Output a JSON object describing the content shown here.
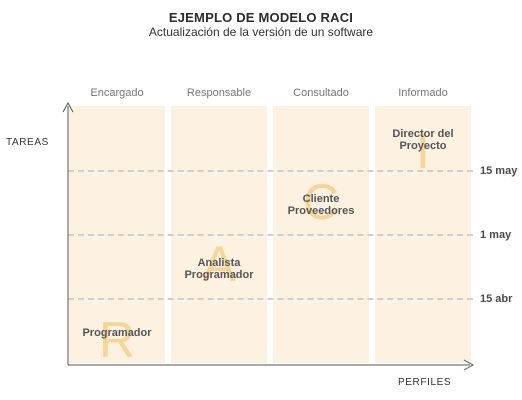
{
  "title": "EJEMPLO DE MODELO RACI",
  "subtitle": "Actualización de la versión de un software",
  "axes": {
    "y_label": "TAREAS",
    "x_label": "PERFILES"
  },
  "columns": [
    {
      "header": "Encargado",
      "letter": "R",
      "label_lines": [
        "Programador"
      ]
    },
    {
      "header": "Responsable",
      "letter": "A",
      "label_lines": [
        "Analista",
        "Programador"
      ]
    },
    {
      "header": "Consultado",
      "letter": "C",
      "label_lines": [
        "Cliente",
        "Proveedores"
      ]
    },
    {
      "header": "Informado",
      "letter": "I",
      "label_lines": [
        "Director del",
        "Proyecto"
      ]
    }
  ],
  "milestones": [
    {
      "label": "15 may"
    },
    {
      "label": "1 may"
    },
    {
      "label": "15 abr"
    }
  ],
  "colors": {
    "column_fill": "#fdf1e2",
    "letter": "#f6d596",
    "dashed_line": "#cfcfcf",
    "axis": "#555555"
  }
}
